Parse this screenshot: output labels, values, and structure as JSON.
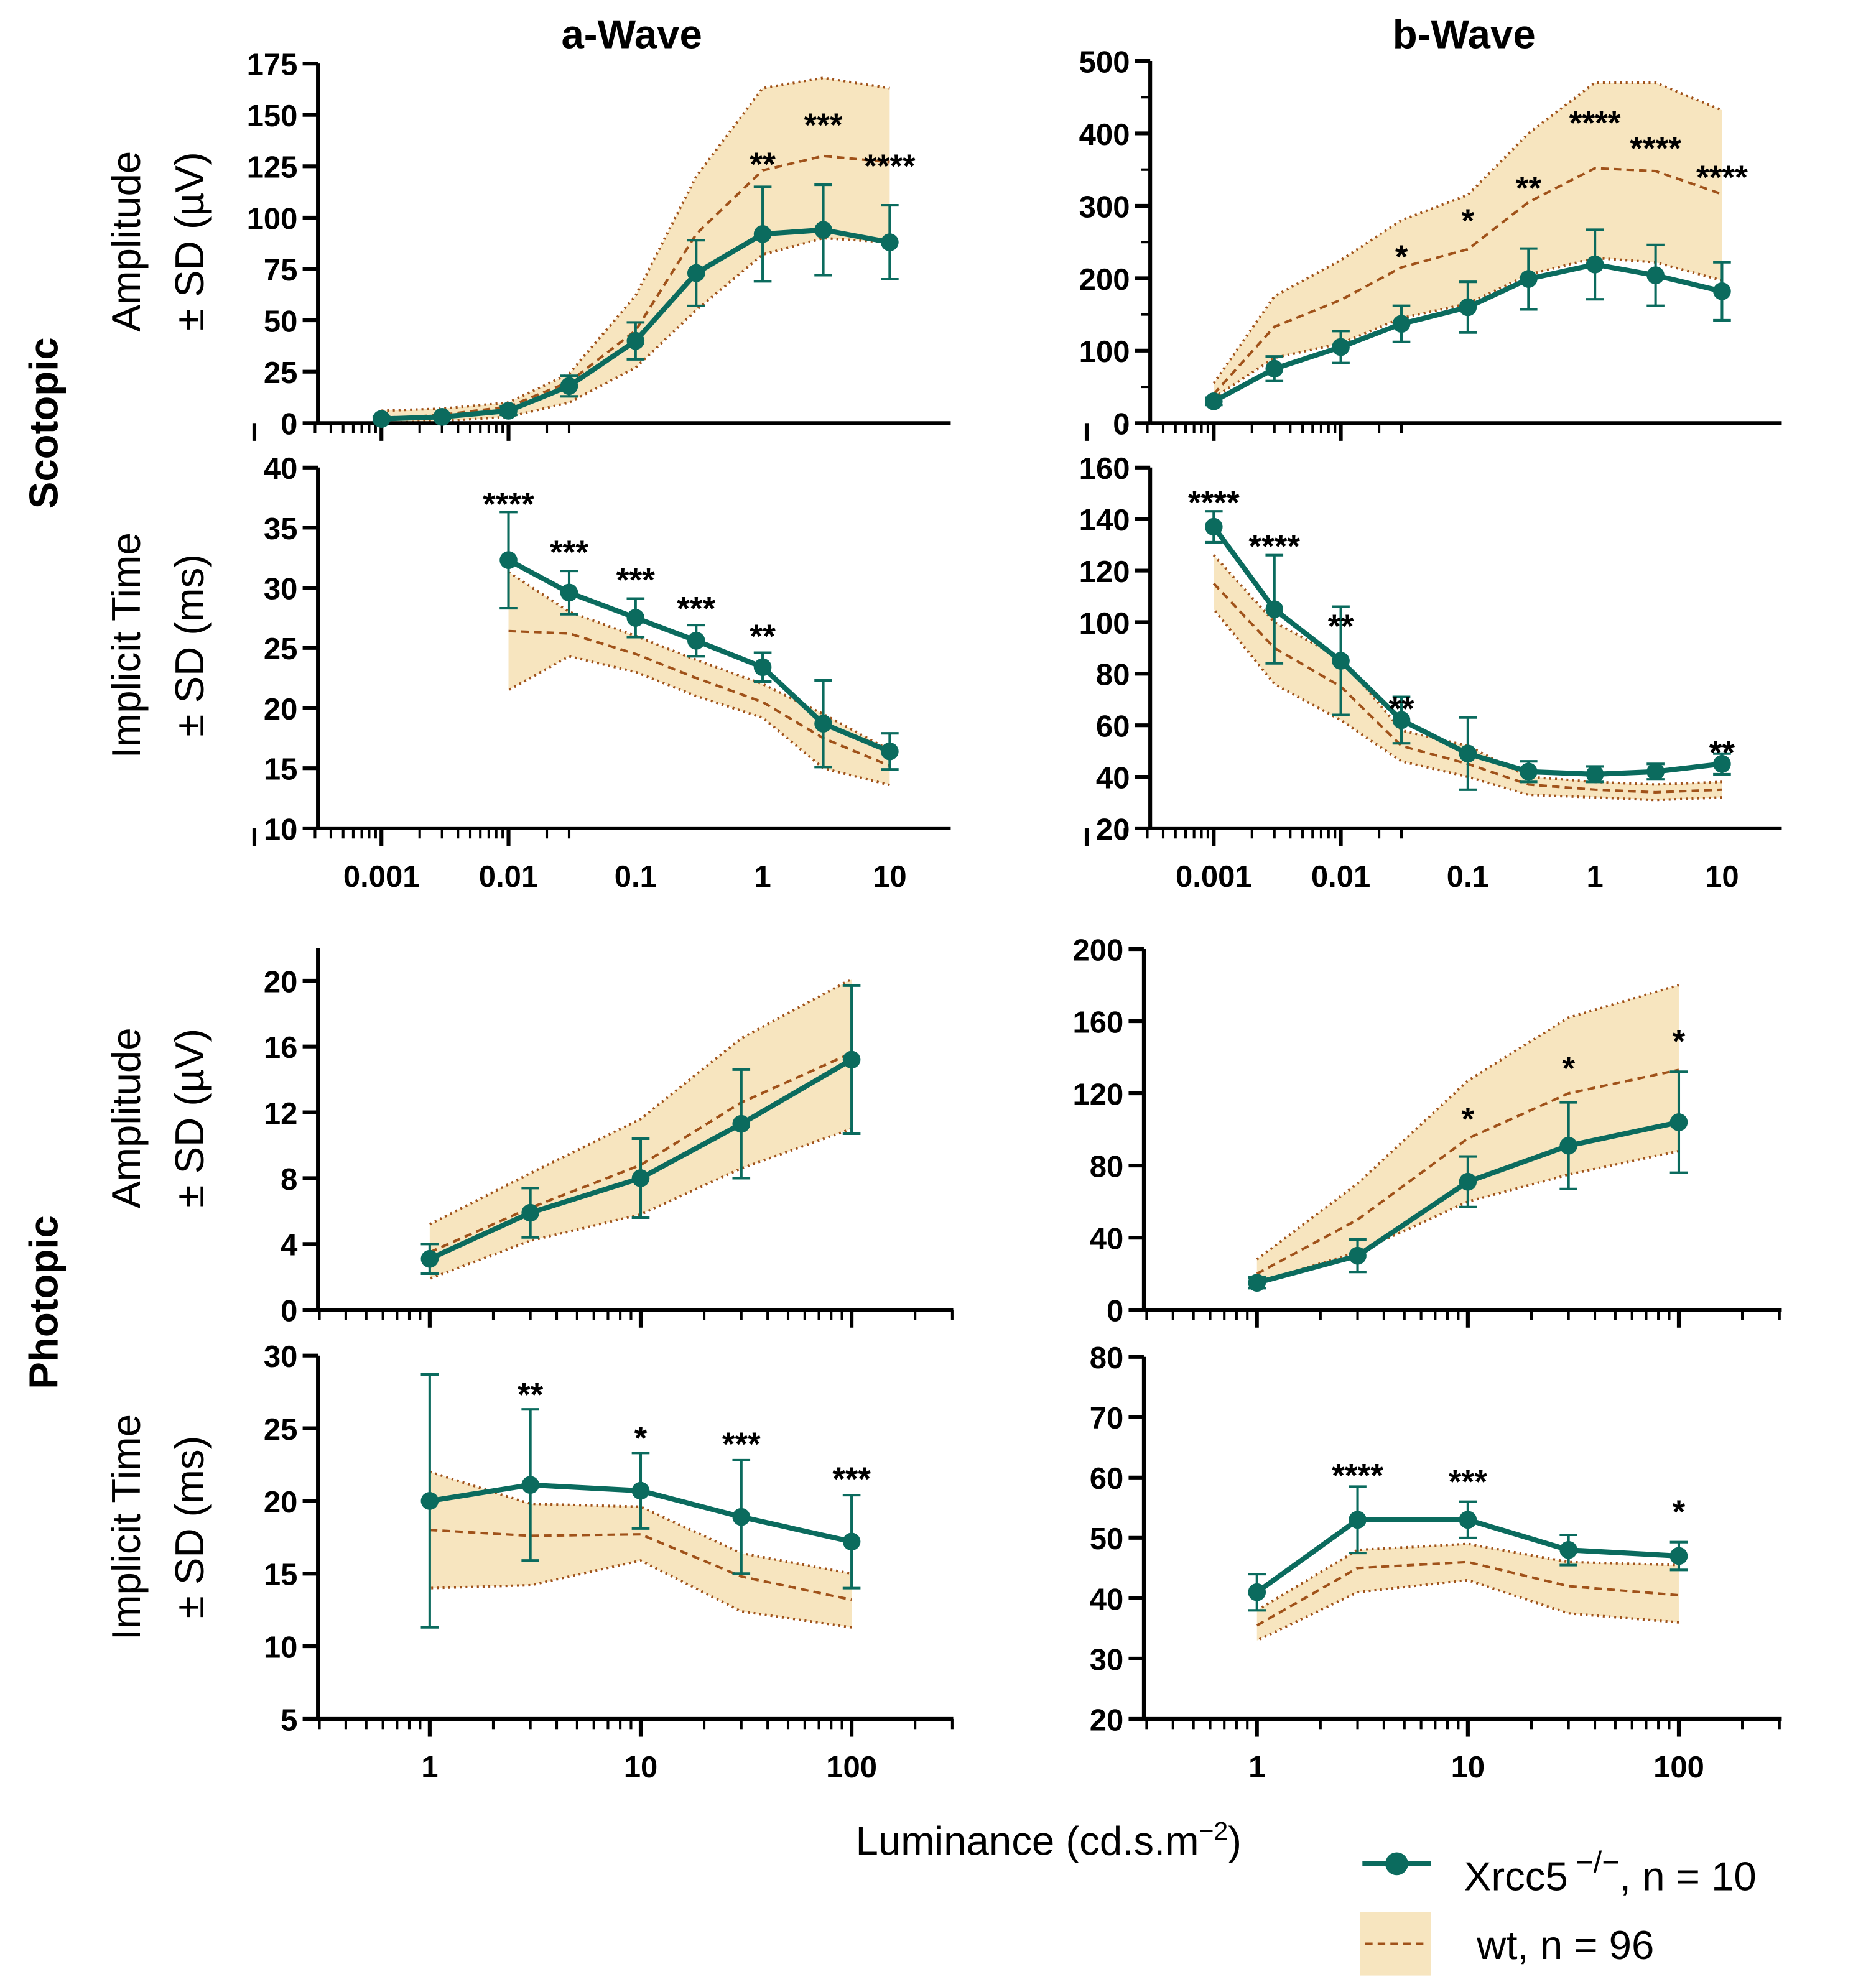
{
  "figure": {
    "col_titles": [
      "a-Wave",
      "b-Wave"
    ],
    "row_titles": [
      "Scotopic",
      "Photopic"
    ],
    "amp_label": [
      "Amplitude",
      "± SD (µV)"
    ],
    "time_label": [
      "Implicit Time",
      "± SD (ms)"
    ],
    "xlabel": "Luminance (cd.s.m",
    "xlabel_sup": "−2",
    "xlabel_end": ")",
    "legend": {
      "ko": "Xrcc5",
      "ko_sup": "−/−",
      "ko_n": ", n = 10",
      "wt": "wt, n = 96"
    },
    "colors": {
      "ko": "#0b6b5e",
      "wt": "#a0521a",
      "band": "#f7e5bf"
    }
  },
  "chart_data": [
    {
      "id": "scot-a-amp",
      "type": "line",
      "xscale": "log",
      "ylim": [
        0,
        175
      ],
      "yticks": [
        0,
        25,
        50,
        75,
        100,
        125,
        150,
        175
      ],
      "xticks": [],
      "x": [
        0.001,
        0.003,
        0.01,
        0.03,
        0.1,
        0.3,
        1,
        3,
        10
      ],
      "ko": [
        2,
        3,
        6,
        18,
        40,
        73,
        92,
        94,
        88
      ],
      "ko_sd": [
        1,
        1,
        2,
        5,
        9,
        16,
        23,
        22,
        18
      ],
      "wt": [
        2,
        4,
        8,
        20,
        45,
        92,
        123,
        130,
        127
      ],
      "wt_lo": [
        0,
        1,
        3,
        10,
        27,
        55,
        82,
        90,
        88
      ],
      "wt_hi": [
        6,
        7,
        10,
        24,
        62,
        120,
        163,
        168,
        163
      ],
      "stars": [
        {
          "x": 1,
          "y": 128,
          "t": "**"
        },
        {
          "x": 3,
          "y": 147,
          "t": "***"
        },
        {
          "x": 10,
          "y": 127,
          "t": "****"
        }
      ]
    },
    {
      "id": "scot-b-amp",
      "type": "line",
      "xscale": "log",
      "ylim": [
        0,
        500
      ],
      "yticks": [
        0,
        100,
        200,
        300,
        400,
        500
      ],
      "xticks": [],
      "x": [
        0.001,
        0.003,
        0.01,
        0.03,
        0.1,
        0.3,
        1,
        3,
        10
      ],
      "ko": [
        30,
        75,
        105,
        137,
        160,
        199,
        219,
        204,
        182
      ],
      "ko_sd": [
        5,
        17,
        22,
        25,
        35,
        42,
        48,
        42,
        40
      ],
      "wt": [
        40,
        133,
        170,
        215,
        240,
        305,
        352,
        348,
        316
      ],
      "wt_lo": [
        35,
        90,
        110,
        145,
        165,
        205,
        228,
        222,
        197
      ],
      "wt_hi": [
        55,
        175,
        225,
        280,
        315,
        400,
        470,
        470,
        432
      ],
      "stars": [
        {
          "x": 0.03,
          "y": 235,
          "t": "*"
        },
        {
          "x": 0.1,
          "y": 285,
          "t": "*"
        },
        {
          "x": 0.3,
          "y": 330,
          "t": "**"
        },
        {
          "x": 1,
          "y": 420,
          "t": "****"
        },
        {
          "x": 3,
          "y": 385,
          "t": "****"
        },
        {
          "x": 10,
          "y": 345,
          "t": "****"
        }
      ]
    },
    {
      "id": "scot-a-time",
      "type": "line",
      "xscale": "log",
      "ylim": [
        10,
        40
      ],
      "yticks": [
        10,
        15,
        20,
        25,
        30,
        35,
        40
      ],
      "xticks": [
        "0.001",
        "0.01",
        "0.1",
        "1",
        "10"
      ],
      "x": [
        0.01,
        0.03,
        0.1,
        0.3,
        1,
        3,
        10
      ],
      "ko": [
        32.3,
        29.6,
        27.5,
        25.6,
        23.4,
        18.7,
        16.4
      ],
      "ko_sd": [
        4,
        1.8,
        1.6,
        1.3,
        1.2,
        3.6,
        1.5
      ],
      "wt": [
        26.4,
        26.2,
        24.5,
        22.5,
        20.5,
        17.5,
        15.2
      ],
      "wt_lo": [
        21.5,
        24.3,
        23,
        21,
        19.2,
        15,
        13.6
      ],
      "wt_hi": [
        31.3,
        28,
        26,
        24,
        22,
        19.5,
        16.5
      ],
      "stars": [
        {
          "x": 0.01,
          "y": 37.3,
          "t": "****"
        },
        {
          "x": 0.03,
          "y": 33.3,
          "t": "***"
        },
        {
          "x": 0.1,
          "y": 31,
          "t": "***"
        },
        {
          "x": 0.3,
          "y": 28.6,
          "t": "***"
        },
        {
          "x": 1,
          "y": 26.3,
          "t": "**"
        }
      ]
    },
    {
      "id": "scot-b-time",
      "type": "line",
      "xscale": "log",
      "ylim": [
        20,
        160
      ],
      "yticks": [
        20,
        40,
        60,
        80,
        100,
        120,
        140,
        160
      ],
      "xticks": [
        "0.001",
        "0.01",
        "0.1",
        "1",
        "10"
      ],
      "x": [
        0.001,
        0.003,
        0.01,
        0.03,
        0.1,
        0.3,
        1,
        3,
        10
      ],
      "ko": [
        137,
        105,
        85,
        62,
        49,
        42,
        41,
        42,
        45
      ],
      "ko_sd": [
        6,
        21,
        21,
        9,
        14,
        4,
        3,
        3,
        4
      ],
      "wt": [
        115,
        90,
        75,
        52,
        45,
        37,
        35,
        34,
        35
      ],
      "wt_lo": [
        105,
        76,
        62,
        46,
        40,
        33,
        32,
        31,
        32
      ],
      "wt_hi": [
        126,
        100,
        86,
        58,
        52,
        40,
        38,
        37,
        38
      ],
      "stars": [
        {
          "x": 0.001,
          "y": 148,
          "t": "****"
        },
        {
          "x": 0.003,
          "y": 131,
          "t": "****"
        },
        {
          "x": 0.01,
          "y": 100,
          "t": "**"
        },
        {
          "x": 0.03,
          "y": 68,
          "t": "**"
        },
        {
          "x": 10,
          "y": 51,
          "t": "**"
        }
      ]
    },
    {
      "id": "phot-a-amp",
      "type": "line",
      "xscale": "log",
      "ylim": [
        0,
        22
      ],
      "yticks": [
        0,
        4,
        8,
        12,
        16,
        20
      ],
      "xticks": [],
      "x": [
        1,
        3,
        10,
        30,
        100
      ],
      "ko": [
        3.1,
        5.9,
        8.0,
        11.3,
        15.2
      ],
      "ko_sd": [
        0.9,
        1.5,
        2.4,
        3.3,
        4.5
      ],
      "wt": [
        3.5,
        6.2,
        8.8,
        12.6,
        15.6
      ],
      "wt_lo": [
        1.9,
        4.2,
        5.8,
        8.6,
        11
      ],
      "wt_hi": [
        5.2,
        8.3,
        11.6,
        16.5,
        20.1
      ],
      "stars": []
    },
    {
      "id": "phot-b-amp",
      "type": "line",
      "xscale": "log",
      "ylim": [
        0,
        200
      ],
      "yticks": [
        0,
        40,
        80,
        120,
        160,
        200
      ],
      "xticks": [],
      "x": [
        1,
        3,
        10,
        30,
        100
      ],
      "ko": [
        15,
        30,
        71,
        91,
        104
      ],
      "ko_sd": [
        3,
        9,
        14,
        24,
        28
      ],
      "wt": [
        20,
        50,
        95,
        120,
        133
      ],
      "wt_lo": [
        15,
        32,
        60,
        75,
        88
      ],
      "wt_hi": [
        28,
        70,
        127,
        162,
        180
      ],
      "stars": [
        {
          "x": 10,
          "y": 108,
          "t": "*"
        },
        {
          "x": 30,
          "y": 136,
          "t": "*"
        },
        {
          "x": 100,
          "y": 151,
          "t": "*"
        }
      ]
    },
    {
      "id": "phot-a-time",
      "type": "line",
      "xscale": "log",
      "ylim": [
        5,
        30
      ],
      "yticks": [
        5,
        10,
        15,
        20,
        25,
        30
      ],
      "xticks": [
        "1",
        "10",
        "100"
      ],
      "x": [
        1,
        3,
        10,
        30,
        100
      ],
      "ko": [
        20,
        21.1,
        20.7,
        18.9,
        17.2
      ],
      "ko_sd": [
        8.7,
        5.2,
        2.6,
        3.9,
        3.2
      ],
      "wt": [
        18,
        17.6,
        17.7,
        14.8,
        13.2
      ],
      "wt_lo": [
        14,
        14.2,
        15.9,
        12.4,
        11.3
      ],
      "wt_hi": [
        22,
        19.8,
        19.6,
        16.4,
        15
      ],
      "stars": [
        {
          "x": 3,
          "y": 27.6,
          "t": "**"
        },
        {
          "x": 10,
          "y": 24.6,
          "t": "*"
        },
        {
          "x": 30,
          "y": 24.2,
          "t": "***"
        },
        {
          "x": 100,
          "y": 21.8,
          "t": "***"
        }
      ]
    },
    {
      "id": "phot-b-time",
      "type": "line",
      "xscale": "log",
      "ylim": [
        20,
        80
      ],
      "yticks": [
        20,
        30,
        40,
        50,
        60,
        70,
        80
      ],
      "xticks": [
        "1",
        "10",
        "100"
      ],
      "x": [
        1,
        3,
        10,
        30,
        100
      ],
      "ko": [
        41,
        53,
        53,
        48,
        47
      ],
      "ko_sd": [
        3,
        5.5,
        3,
        2.5,
        2.3
      ],
      "wt": [
        35.5,
        45,
        46,
        42,
        40.5
      ],
      "wt_lo": [
        33,
        41,
        43,
        37.5,
        36
      ],
      "wt_hi": [
        38,
        48,
        49,
        46,
        45.5
      ],
      "stars": [
        {
          "x": 3,
          "y": 61,
          "t": "****"
        },
        {
          "x": 10,
          "y": 60,
          "t": "***"
        },
        {
          "x": 100,
          "y": 55,
          "t": "*"
        }
      ]
    }
  ]
}
